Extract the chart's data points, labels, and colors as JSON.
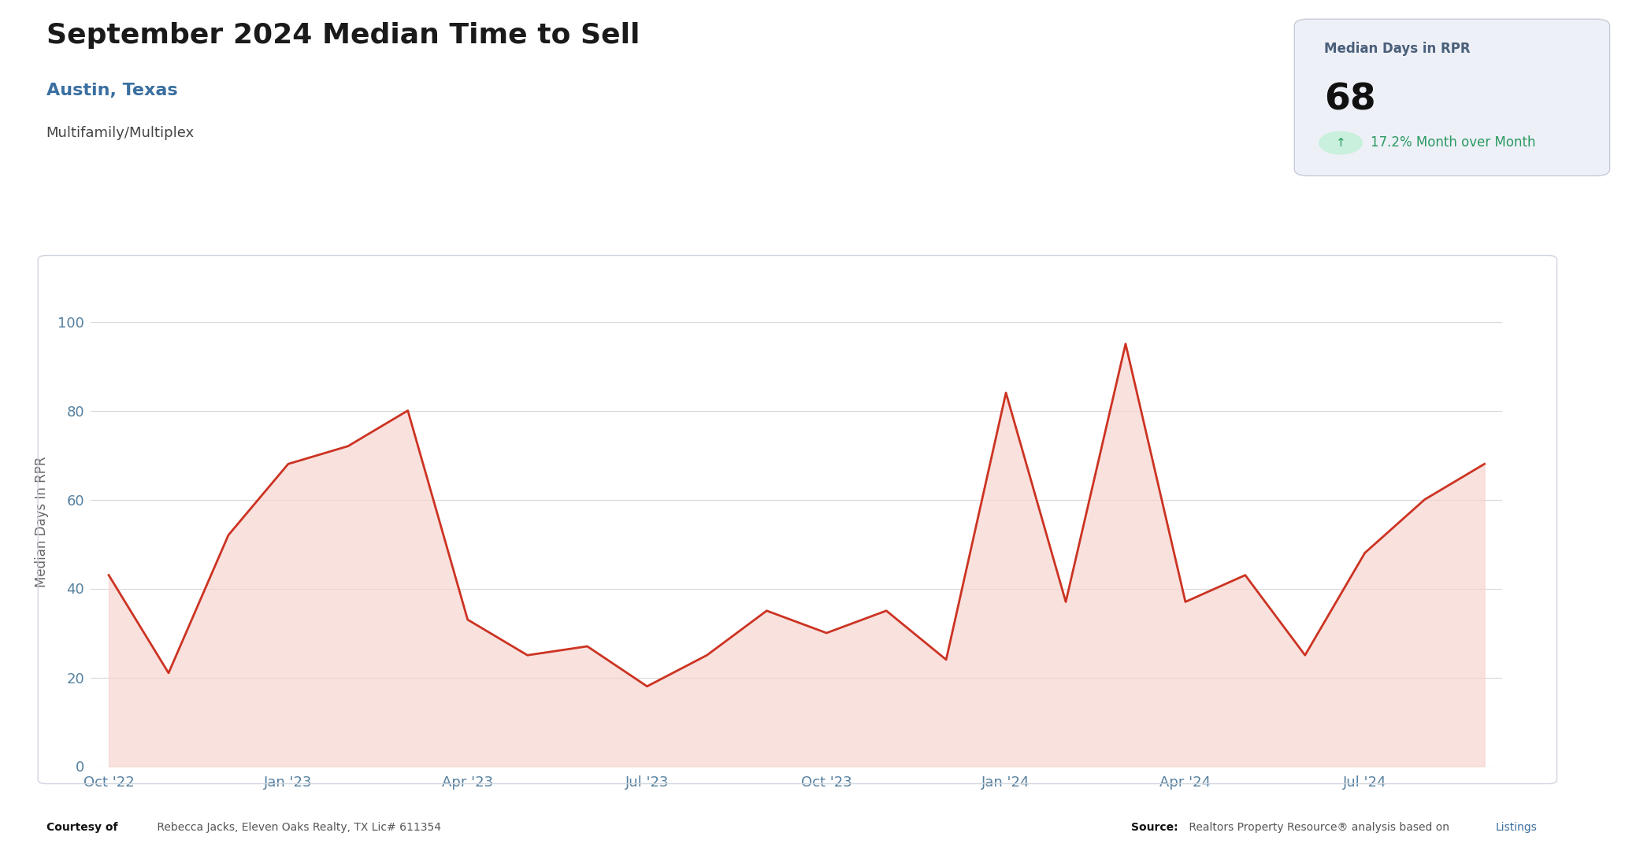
{
  "title": "September 2024 Median Time to Sell",
  "subtitle": "Austin, Texas",
  "property_type": "Multifamily/Multiplex",
  "ylabel": "Median Days In RPR",
  "box_label": "Median Days in RPR",
  "box_value": "68",
  "x_labels": [
    "Oct '22",
    "Jan '23",
    "Apr '23",
    "Jul '23",
    "Oct '23",
    "Jan '24",
    "Apr '24",
    "Jul '24"
  ],
  "y_ticks": [
    0,
    20,
    40,
    60,
    80,
    100
  ],
  "ylim": [
    0,
    110
  ],
  "values": [
    43,
    21,
    52,
    68,
    72,
    80,
    33,
    25,
    27,
    18,
    25,
    35,
    30,
    35,
    24,
    84,
    37,
    95,
    37,
    43,
    25,
    48,
    60,
    68
  ],
  "line_color": "#cc3322",
  "fill_color": "#f7d5d0",
  "fill_alpha": 0.7,
  "background_color": "#ffffff",
  "plot_bg_color": "#ffffff",
  "grid_color": "#d8d8d8",
  "title_color": "#1a1a1a",
  "subtitle_color": "#3a6fa0",
  "property_type_color": "#444444",
  "ylabel_color": "#666666",
  "tick_color": "#5580a0",
  "box_bg_color": "#eef0f8",
  "box_border_color": "#c8ccd8",
  "box_label_color": "#4a5f7a",
  "box_value_color": "#111111",
  "box_change_color": "#2a9a60",
  "arrow_bg_color": "#c8f0dc",
  "footer_bold_color": "#111111",
  "footer_normal_color": "#555555",
  "footer_link_color": "#3a6fa0",
  "x_tick_positions": [
    0,
    3,
    6,
    9,
    12,
    15,
    18,
    21
  ]
}
